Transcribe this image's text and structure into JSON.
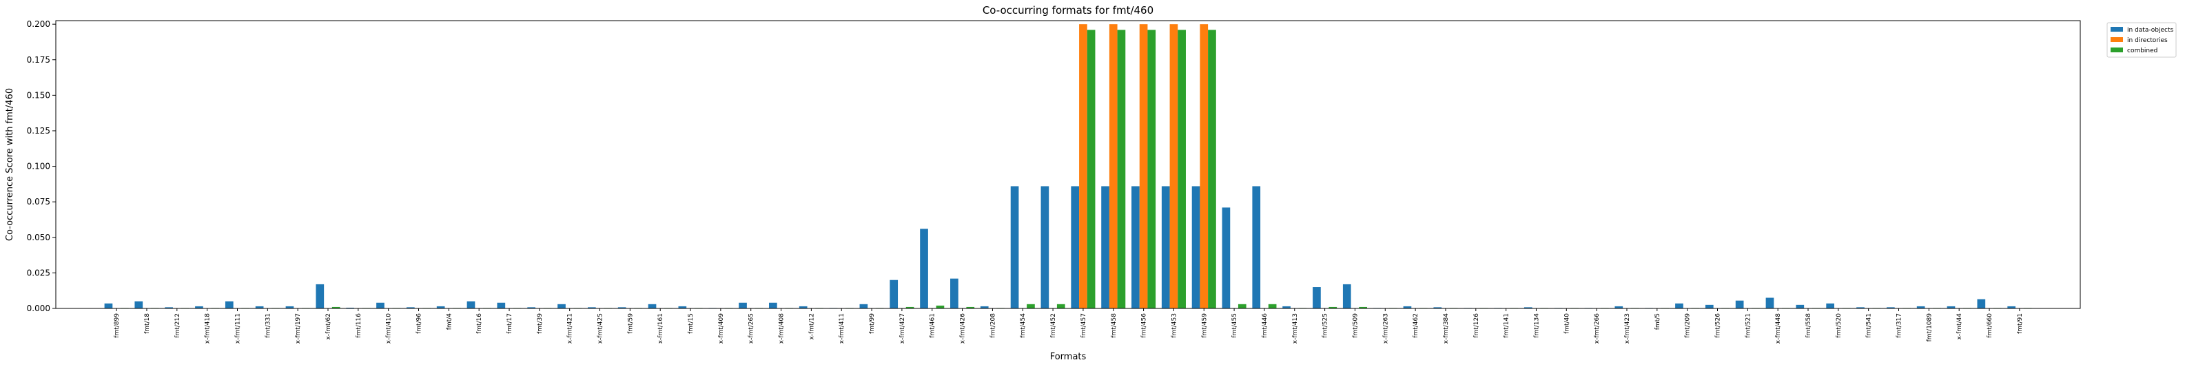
{
  "chart_data": {
    "type": "bar",
    "title": "Co-occurring formats for fmt/460",
    "xlabel": "Formats",
    "ylabel": "Co-occurrence Score with fmt/460",
    "ylim": [
      0,
      0.2025
    ],
    "yticks": [
      0.0,
      0.025,
      0.05,
      0.075,
      0.1,
      0.125,
      0.15,
      0.175,
      0.2
    ],
    "ytick_labels": [
      "0.000",
      "0.025",
      "0.050",
      "0.075",
      "0.100",
      "0.125",
      "0.150",
      "0.175",
      "0.200"
    ],
    "legend_position": "upper right, outside plot",
    "categories": [
      "fmt/899",
      "fmt/18",
      "fmt/212",
      "x-fmt/418",
      "x-fmt/111",
      "fmt/331",
      "x-fmt/197",
      "x-fmt/62",
      "fmt/116",
      "x-fmt/410",
      "fmt/96",
      "fmt/4",
      "fmt/16",
      "fmt/17",
      "fmt/39",
      "x-fmt/421",
      "x-fmt/425",
      "fmt/59",
      "x-fmt/161",
      "fmt/15",
      "x-fmt/409",
      "x-fmt/265",
      "x-fmt/408",
      "x-fmt/12",
      "x-fmt/411",
      "fmt/99",
      "x-fmt/427",
      "fmt/461",
      "x-fmt/426",
      "fmt/208",
      "fmt/454",
      "fmt/452",
      "fmt/457",
      "fmt/458",
      "fmt/456",
      "fmt/453",
      "fmt/459",
      "fmt/455",
      "fmt/446",
      "x-fmt/413",
      "fmt/525",
      "fmt/509",
      "x-fmt/263",
      "fmt/462",
      "x-fmt/384",
      "fmt/126",
      "fmt/141",
      "fmt/134",
      "fmt/40",
      "x-fmt/266",
      "x-fmt/423",
      "fmt/5",
      "fmt/209",
      "fmt/526",
      "fmt/521",
      "x-fmt/448",
      "fmt/558",
      "fmt/520",
      "fmt/541",
      "fmt/317",
      "fmt/1089",
      "x-fmt/44",
      "fmt/660",
      "fmt/91"
    ],
    "series": [
      {
        "name": "in data-objects",
        "color": "#1f77b4",
        "values": [
          0.0035,
          0.005,
          0.0008,
          0.0015,
          0.005,
          0.0015,
          0.0015,
          0.017,
          0.0005,
          0.004,
          0.0008,
          0.0015,
          0.005,
          0.004,
          0.0008,
          0.003,
          0.0008,
          0.0008,
          0.003,
          0.0015,
          0.0003,
          0.004,
          0.004,
          0.0015,
          0.0003,
          0.003,
          0.02,
          0.056,
          0.021,
          0.0015,
          0.086,
          0.086,
          0.086,
          0.086,
          0.086,
          0.086,
          0.086,
          0.071,
          0.086,
          0.0015,
          0.015,
          0.017,
          0.0003,
          0.0015,
          0.0008,
          0.0003,
          0.0003,
          0.0008,
          0.0003,
          0.0003,
          0.0015,
          0.0003,
          0.0035,
          0.0025,
          0.0055,
          0.0075,
          0.0025,
          0.0035,
          0.0008,
          0.0008,
          0.0015,
          0.0015,
          0.0065,
          0.0015
        ]
      },
      {
        "name": "in directories",
        "color": "#ff7f0e",
        "values": [
          0,
          0,
          0,
          0,
          0,
          0,
          0,
          0,
          0,
          0,
          0,
          0,
          0,
          0,
          0,
          0,
          0,
          0,
          0,
          0,
          0,
          0,
          0,
          0,
          0,
          0,
          0,
          0,
          0,
          0,
          0,
          0,
          0.2,
          0.2,
          0.2,
          0.2,
          0.2,
          0,
          0,
          0,
          0,
          0,
          0,
          0,
          0,
          0,
          0,
          0,
          0,
          0,
          0,
          0,
          0,
          0,
          0,
          0,
          0,
          0,
          0,
          0,
          0,
          0,
          0,
          0
        ]
      },
      {
        "name": "combined",
        "color": "#2ca02c",
        "values": [
          0.0003,
          0.0003,
          0.0003,
          0.0003,
          0.0003,
          0.0003,
          0.0003,
          0.001,
          0.0003,
          0.0003,
          0.0003,
          0.0003,
          0.0003,
          0.0003,
          0.0003,
          0.0003,
          0.0003,
          0.0003,
          0.0003,
          0.0003,
          0.0003,
          0.0003,
          0.0003,
          0.0003,
          0.0003,
          0.0003,
          0.001,
          0.002,
          0.001,
          0.0003,
          0.003,
          0.003,
          0.196,
          0.196,
          0.196,
          0.196,
          0.196,
          0.003,
          0.003,
          0.0003,
          0.001,
          0.001,
          0.0003,
          0.0003,
          0.0003,
          0.0003,
          0.0003,
          0.0003,
          0.0003,
          0.0003,
          0.0003,
          0.0003,
          0.0003,
          0.0003,
          0.0003,
          0.0003,
          0.0003,
          0.0003,
          0.0003,
          0.0003,
          0.0003,
          0.0003,
          0.0003,
          0.0003
        ]
      }
    ]
  }
}
